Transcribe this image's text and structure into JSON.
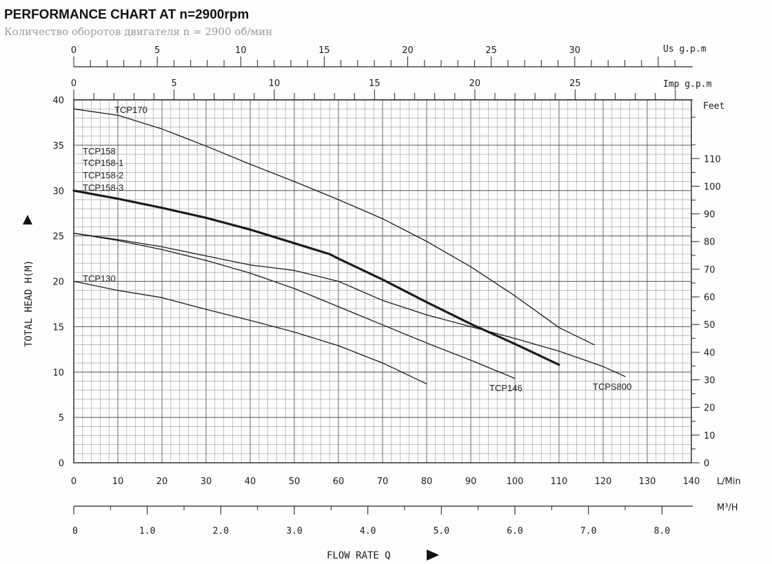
{
  "chart_data": {
    "type": "line",
    "title": "PERFORMANCE CHART AT n=2900rpm",
    "subtitle": "Количество оборотов двигателя n = 2900 об/мин",
    "xlabel": "FLOW RATE Q",
    "ylabel": "TOTAL HEAD H(M)",
    "grid": true,
    "x_units": "L/Min",
    "xlim": [
      0,
      140
    ],
    "ylim": [
      0,
      40
    ],
    "x_ticks": [
      "0",
      "10",
      "20",
      "30",
      "40",
      "50",
      "60",
      "70",
      "80",
      "90",
      "100",
      "110",
      "120",
      "130",
      "140"
    ],
    "y_ticks": [
      "0",
      "5",
      "10",
      "15",
      "20",
      "25",
      "30",
      "35",
      "40"
    ],
    "feet_axis": {
      "label": "Feet",
      "ticks": [
        "0",
        "10",
        "20",
        "30",
        "40",
        "50",
        "60",
        "70",
        "80",
        "90",
        "100",
        "110"
      ]
    },
    "m3h_axis": {
      "label": "M³/H",
      "ticks": [
        "0",
        "1.0",
        "2.0",
        "3.0",
        "4.0",
        "5.0",
        "6.0",
        "7.0",
        "8.0"
      ]
    },
    "us_gpm_axis": {
      "label": "Us g.p.m",
      "ticks": [
        "0",
        "5",
        "10",
        "15",
        "20",
        "25",
        "30"
      ]
    },
    "imp_gpm_axis": {
      "label": "Imp g.p.m",
      "ticks": [
        "0",
        "5",
        "10",
        "15",
        "20",
        "25"
      ]
    },
    "series": [
      {
        "name": "TCP170",
        "bold": false,
        "x": [
          0,
          10,
          20,
          30,
          40,
          50,
          60,
          70,
          80,
          90,
          100,
          110,
          118
        ],
        "y": [
          39,
          38.3,
          36.8,
          34.9,
          32.9,
          31,
          29,
          26.9,
          24.4,
          21.6,
          18.4,
          14.9,
          13
        ]
      },
      {
        "name": "TCP158",
        "bold": true,
        "x": [
          0,
          10,
          20,
          30,
          40,
          50,
          58,
          60,
          70,
          80,
          90,
          100,
          110
        ],
        "y": [
          30,
          29.1,
          28.1,
          27,
          25.7,
          24.2,
          23,
          22.5,
          20.2,
          17.7,
          15.3,
          13.1,
          10.8
        ]
      },
      {
        "name": "TCPS800",
        "bold": false,
        "x": [
          0,
          10,
          20,
          30,
          40,
          50,
          60,
          70,
          80,
          90,
          100,
          110,
          120,
          125
        ],
        "y": [
          25.3,
          24.6,
          23.8,
          22.8,
          21.8,
          21.2,
          20,
          17.9,
          16.3,
          15,
          13.7,
          12.3,
          10.6,
          9.5
        ]
      },
      {
        "name": "TCP146",
        "bold": false,
        "x": [
          0,
          10,
          20,
          30,
          40,
          50,
          60,
          70,
          80,
          90,
          100
        ],
        "y": [
          25.3,
          24.5,
          23.5,
          22.3,
          20.9,
          19.2,
          17.2,
          15.2,
          13.2,
          11.3,
          9.3
        ]
      },
      {
        "name": "TCP130",
        "bold": false,
        "x": [
          0,
          10,
          20,
          30,
          40,
          50,
          60,
          70,
          80
        ],
        "y": [
          20,
          19,
          18.2,
          16.9,
          15.7,
          14.4,
          12.9,
          11,
          8.7
        ]
      }
    ],
    "labels": {
      "tcp170": "TCP170",
      "tcp158": "TCP158",
      "tcp158_1": "TCP158-1",
      "tcp158_2": "TCP158-2",
      "tcp158_3": "TCP158-3",
      "tcp130": "TCP130",
      "tcp146": "TCP146",
      "tcps800": "TCPS800"
    }
  }
}
